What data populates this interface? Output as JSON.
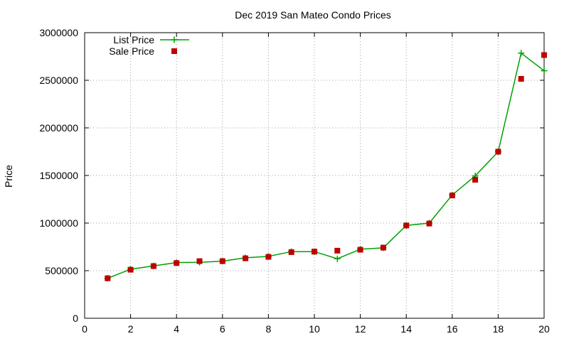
{
  "chart_data": {
    "type": "line",
    "title": "Dec 2019 San Mateo Condo Prices",
    "xlabel": "",
    "ylabel": "Price",
    "xlim": [
      0,
      20
    ],
    "ylim": [
      0,
      3000000
    ],
    "x_ticks": [
      "0",
      "2",
      "4",
      "6",
      "8",
      "10",
      "12",
      "14",
      "16",
      "18",
      "20"
    ],
    "y_ticks": [
      "0",
      "500000",
      "1000000",
      "1500000",
      "2000000",
      "2500000",
      "3000000"
    ],
    "grid": true,
    "legend_position": "top-left",
    "series": [
      {
        "name": "List Price",
        "style": "lines+points",
        "marker": "plus",
        "color": "#00a000",
        "x": [
          1,
          2,
          3,
          4,
          5,
          6,
          7,
          8,
          9,
          10,
          11,
          12,
          13,
          14,
          15,
          16,
          17,
          18,
          19,
          20
        ],
        "y": [
          420000,
          515000,
          550000,
          585000,
          588000,
          600000,
          635000,
          650000,
          700000,
          700000,
          625000,
          725000,
          740000,
          975000,
          1000000,
          1295000,
          1495000,
          1750000,
          2785000,
          2600000
        ]
      },
      {
        "name": "Sale Price",
        "style": "points",
        "marker": "square",
        "color": "#c00000",
        "x": [
          1,
          2,
          3,
          4,
          5,
          6,
          7,
          8,
          9,
          10,
          11,
          12,
          13,
          14,
          15,
          16,
          17,
          18,
          19,
          20
        ],
        "y": [
          420000,
          510000,
          548000,
          580000,
          600000,
          600000,
          630000,
          645000,
          695000,
          700000,
          710000,
          720000,
          742000,
          975000,
          995000,
          1290000,
          1455000,
          1750000,
          2515000,
          2765000
        ]
      }
    ]
  }
}
